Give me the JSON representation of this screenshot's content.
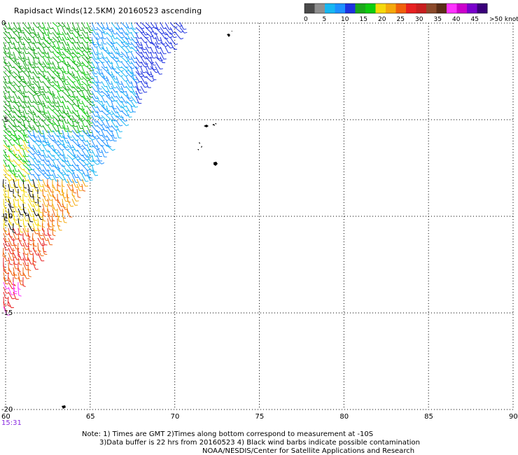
{
  "title": "Rapidsact Winds(12.5KM) 20160523 ascending",
  "colorbar": {
    "colors": [
      "#4a4a4a",
      "#8f8f8f",
      "#17b7f2",
      "#1e90ff",
      "#1e32e0",
      "#1aa81a",
      "#0dcd0d",
      "#f5d90a",
      "#f5a80a",
      "#f0600a",
      "#e82020",
      "#c81e1e",
      "#8b4a2b",
      "#5a2d17",
      "#ff33ff",
      "#cc00cc",
      "#7a00cc",
      "#3a007a"
    ],
    "labels": [
      "0",
      "5",
      "10",
      "15",
      "20",
      "25",
      "30",
      "35",
      "40",
      "45",
      ">50 knots"
    ]
  },
  "axes": {
    "x_ticks": [
      "60",
      "65",
      "70",
      "75",
      "80",
      "85",
      "90"
    ],
    "y_ticks": [
      "0",
      "-5",
      "-10",
      "-15",
      "-20"
    ],
    "lon_range": [
      60,
      90
    ],
    "lat_range": [
      0,
      -20
    ]
  },
  "timestamp": "15:31",
  "footer": {
    "line1": "Note: 1) Times are GMT 2)Times along bottom correspond to measurement at -10S",
    "line2": "3)Data buffer is 22 hrs from 20160523 4) Black wind barbs indicate possible contamination",
    "line3": "NOAA/NESDIS/Center for Satellite Applications and Research"
  }
}
